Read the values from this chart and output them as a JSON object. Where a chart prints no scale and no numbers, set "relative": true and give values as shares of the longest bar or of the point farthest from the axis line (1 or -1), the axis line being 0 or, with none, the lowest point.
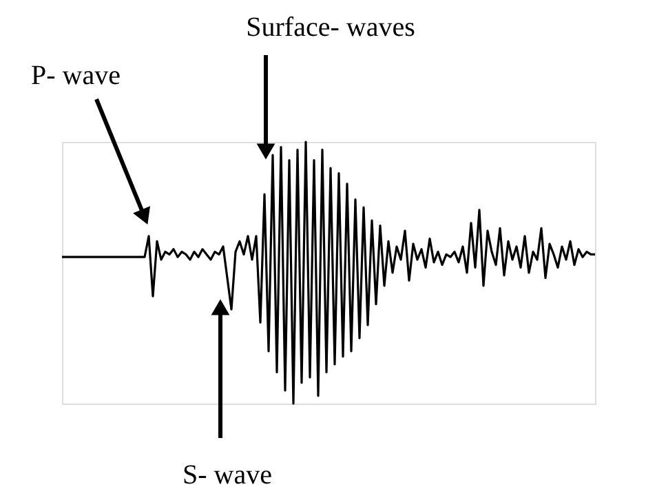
{
  "chart_data": {
    "type": "line",
    "relative": true,
    "color": "#000000",
    "annotations": [
      "P- wave",
      "Surface- waves",
      "S- wave"
    ],
    "categories": [
      null,
      null,
      null,
      null,
      null,
      null,
      null,
      null,
      null,
      null,
      null,
      null,
      null,
      null,
      null,
      null,
      null,
      null,
      null,
      null,
      null,
      null,
      null,
      null,
      null,
      null,
      null,
      null,
      null,
      null,
      null,
      null,
      null,
      null,
      null,
      null,
      null,
      null,
      null,
      null,
      null,
      null,
      null,
      null,
      null,
      null,
      null,
      null,
      null,
      null,
      null,
      null,
      null,
      null,
      null,
      null,
      null,
      null,
      null,
      null,
      null,
      null,
      null,
      null,
      null,
      null,
      null,
      null,
      null,
      null,
      null,
      null,
      null,
      null,
      null,
      null,
      null,
      null,
      null,
      null,
      null,
      null,
      null,
      null,
      null,
      null,
      null,
      null,
      null,
      null,
      null,
      null,
      null,
      null,
      null,
      null,
      null,
      null,
      null,
      null,
      null,
      null,
      null,
      null,
      null,
      null,
      null,
      null,
      null,
      null,
      null,
      null,
      null,
      null,
      null,
      null,
      null,
      null,
      null,
      null,
      null,
      null,
      null,
      null,
      null,
      null,
      null,
      null,
      null,
      null
    ],
    "values": [
      0.56,
      0.56,
      0.56,
      0.56,
      0.56,
      0.56,
      0.56,
      0.56,
      0.56,
      0.56,
      0.56,
      0.56,
      0.56,
      0.56,
      0.56,
      0.56,
      0.56,
      0.56,
      0.56,
      0.56,
      0.56,
      0.64,
      0.41,
      0.62,
      0.55,
      0.58,
      0.57,
      0.59,
      0.56,
      0.58,
      0.57,
      0.55,
      0.58,
      0.56,
      0.59,
      0.57,
      0.55,
      0.58,
      0.57,
      0.6,
      0.48,
      0.36,
      0.58,
      0.62,
      0.57,
      0.64,
      0.55,
      0.64,
      0.31,
      0.8,
      0.2,
      0.95,
      0.12,
      0.98,
      0.05,
      0.93,
      0.0,
      0.97,
      0.08,
      1.0,
      0.1,
      0.93,
      0.03,
      0.97,
      0.12,
      0.9,
      0.15,
      0.88,
      0.18,
      0.84,
      0.2,
      0.78,
      0.25,
      0.75,
      0.3,
      0.7,
      0.38,
      0.68,
      0.45,
      0.62,
      0.5,
      0.6,
      0.55,
      0.66,
      0.47,
      0.61,
      0.55,
      0.59,
      0.52,
      0.63,
      0.54,
      0.58,
      0.53,
      0.57,
      0.56,
      0.58,
      0.54,
      0.6,
      0.5,
      0.69,
      0.52,
      0.74,
      0.45,
      0.66,
      0.58,
      0.53,
      0.67,
      0.49,
      0.62,
      0.55,
      0.6,
      0.52,
      0.64,
      0.5,
      0.58,
      0.55,
      0.67,
      0.48,
      0.61,
      0.57,
      0.52,
      0.6,
      0.55,
      0.62,
      0.53,
      0.59,
      0.56,
      0.58,
      0.57,
      0.57
    ]
  }
}
